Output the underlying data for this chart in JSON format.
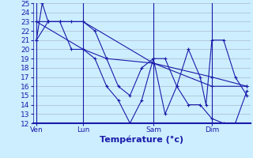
{
  "background_color": "#cceeff",
  "grid_color": "#aabbcc",
  "line_color": "#1a1aaa",
  "ylim": [
    12,
    25
  ],
  "yticks": [
    12,
    13,
    14,
    15,
    16,
    17,
    18,
    19,
    20,
    21,
    22,
    23,
    24,
    25
  ],
  "xlabel": "Température (°c)",
  "xlabel_fontsize": 8,
  "tick_fontsize": 6.5,
  "xtick_labels": [
    "Ven",
    "Lun",
    "Sam",
    "Dim"
  ],
  "xtick_positions": [
    0,
    4,
    10,
    15
  ],
  "vline_positions": [
    0,
    4,
    10,
    15
  ],
  "series1_x": [
    0,
    0.5,
    1,
    2,
    3,
    4,
    5,
    6,
    7,
    8,
    9,
    10,
    11,
    12,
    13,
    14,
    14.5,
    15,
    16,
    17,
    18
  ],
  "series1_y": [
    21,
    25,
    23,
    23,
    23,
    23,
    22,
    19,
    16,
    15,
    18,
    19,
    13,
    16,
    20,
    17,
    14,
    21,
    21,
    17,
    15
  ],
  "series2_x": [
    0,
    1,
    2,
    3,
    4,
    5,
    6,
    7,
    8,
    9,
    10,
    11,
    12,
    13,
    14,
    15,
    16,
    17,
    18
  ],
  "series2_y": [
    21,
    23,
    23,
    20,
    20,
    19,
    16,
    14.5,
    12,
    14.5,
    19,
    19,
    16,
    14,
    14,
    12.5,
    12,
    12,
    15.5
  ],
  "series3_x": [
    0,
    4,
    10,
    15,
    18
  ],
  "series3_y": [
    23,
    23,
    18.5,
    17,
    16
  ],
  "series4_x": [
    0,
    4,
    6,
    10,
    15,
    18
  ],
  "series4_y": [
    23,
    20,
    19,
    18.5,
    16,
    16
  ],
  "xlim": [
    -0.3,
    18.3
  ]
}
